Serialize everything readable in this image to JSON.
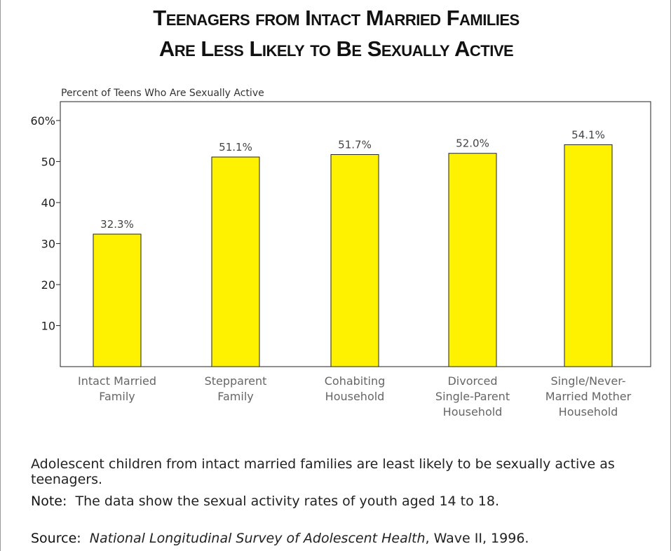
{
  "title_line1": "Teenagers from Intact Married Families",
  "title_line2": "Are Less Likely to Be Sexually Active",
  "chart_data": {
    "type": "bar",
    "ylabel": "Percent of Teens Who Are Sexually Active",
    "categories": [
      [
        "Intact Married",
        "Family"
      ],
      [
        "Stepparent",
        "Family"
      ],
      [
        "Cohabiting",
        "Household"
      ],
      [
        "Divorced",
        "Single-Parent",
        "Household"
      ],
      [
        "Single/Never-",
        "Married Mother",
        "Household"
      ]
    ],
    "values": [
      32.3,
      51.1,
      51.7,
      52.0,
      54.1
    ],
    "data_labels": [
      "32.3%",
      "51.1%",
      "51.7%",
      "52.0%",
      "54.1%"
    ],
    "yticks": [
      10,
      20,
      30,
      40,
      50,
      60
    ],
    "ytick_labels": [
      "10",
      "20",
      "30",
      "40",
      "50",
      "60%"
    ],
    "ylim": [
      0,
      64.6
    ],
    "grid": false,
    "bar_color": "#FFF200"
  },
  "caption": "Adolescent children from intact married families are least likely to be sexually active as teenagers.",
  "note_label": "Note:",
  "note_text": "The data show the sexual activity rates of youth aged 14 to 18.",
  "source_label": "Source:",
  "source_title": "National Longitudinal Survey of Adolescent Health",
  "source_rest": ", Wave II, 1996."
}
